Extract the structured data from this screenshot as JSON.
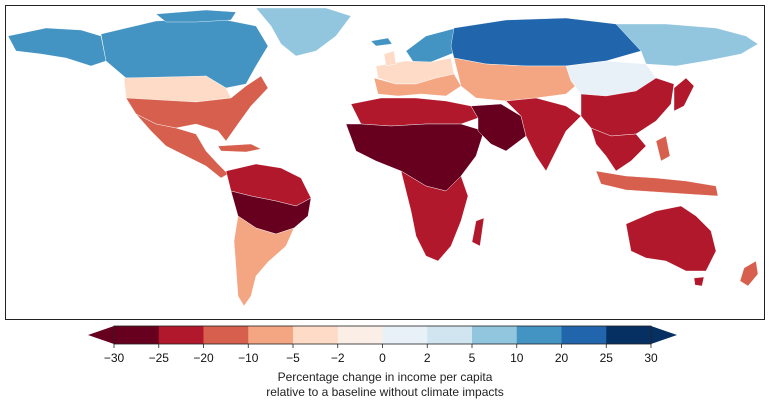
{
  "colors": {
    "bin_colors": [
      "#67001f",
      "#b2182b",
      "#d6604d",
      "#f4a582",
      "#fddbc7",
      "#fbeee6",
      "#e8f0f8",
      "#d1e5f0",
      "#92c5de",
      "#4393c3",
      "#2166ac",
      "#053061"
    ],
    "arrow_low": "#67001f",
    "arrow_high": "#053061",
    "map_frame": "#222222"
  },
  "legend": {
    "ticks": [
      "−30",
      "−25",
      "−20",
      "−10",
      "−5",
      "−2",
      "0",
      "2",
      "5",
      "10",
      "20",
      "25",
      "30"
    ],
    "caption_line1": "Percentage change in income per capita",
    "caption_line2": "relative to a baseline without climate impacts"
  },
  "regions": [
    {
      "name": "Canada",
      "bin": 9
    },
    {
      "name": "Alaska",
      "bin": 9
    },
    {
      "name": "Greenland",
      "bin": 8
    },
    {
      "name": "Northern USA",
      "bin": 4
    },
    {
      "name": "Southern USA",
      "bin": 2
    },
    {
      "name": "Mexico & Central America",
      "bin": 2
    },
    {
      "name": "Northern South America",
      "bin": 1
    },
    {
      "name": "Amazon Basin",
      "bin": 0
    },
    {
      "name": "Southern South America",
      "bin": 3
    },
    {
      "name": "Scandinavia",
      "bin": 9
    },
    {
      "name": "Western Europe",
      "bin": 4
    },
    {
      "name": "Southern Europe",
      "bin": 3
    },
    {
      "name": "Northern Russia",
      "bin": 10
    },
    {
      "name": "Eastern Siberia",
      "bin": 8
    },
    {
      "name": "Central Asia",
      "bin": 3
    },
    {
      "name": "Tibet & Mongolia",
      "bin": 6
    },
    {
      "name": "North Africa",
      "bin": 1
    },
    {
      "name": "Sahel & Central Africa",
      "bin": 0
    },
    {
      "name": "Southern Africa",
      "bin": 1
    },
    {
      "name": "Arabian Peninsula",
      "bin": 0
    },
    {
      "name": "India",
      "bin": 1
    },
    {
      "name": "China",
      "bin": 1
    },
    {
      "name": "Southeast Asia",
      "bin": 1
    },
    {
      "name": "Indonesia",
      "bin": 2
    },
    {
      "name": "Australia",
      "bin": 1
    },
    {
      "name": "New Zealand",
      "bin": 2
    }
  ]
}
